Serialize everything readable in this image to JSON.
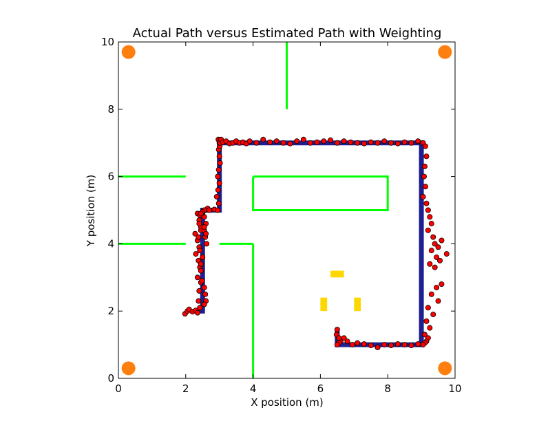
{
  "chart_data": {
    "type": "scatter",
    "title": "Actual Path versus Estimated Path with Weighting",
    "xlabel": "X position (m)",
    "ylabel": "Y position (m)",
    "xlim": [
      0,
      10
    ],
    "ylim": [
      0,
      10
    ],
    "xticks": [
      0,
      2,
      4,
      6,
      8,
      10
    ],
    "yticks": [
      0,
      2,
      4,
      6,
      8,
      10
    ],
    "grid": false,
    "colors": {
      "walls": "#00ff00",
      "anchors": "#ff7f0e",
      "obstacles": "#ffd700",
      "actual_path": "#1f1f8f",
      "estimated_points": "#ff0000"
    },
    "walls": [
      {
        "x": [
          5,
          5
        ],
        "y": [
          10,
          8
        ]
      },
      {
        "x": [
          0,
          2
        ],
        "y": [
          6,
          6
        ]
      },
      {
        "x": [
          0,
          2
        ],
        "y": [
          4,
          4
        ]
      },
      {
        "x": [
          3,
          4
        ],
        "y": [
          4,
          4
        ]
      },
      {
        "x": [
          4,
          4
        ],
        "y": [
          4,
          0
        ]
      },
      {
        "x": [
          4,
          8,
          8,
          4,
          4
        ],
        "y": [
          6,
          6,
          5,
          5,
          6
        ]
      }
    ],
    "anchors": [
      {
        "x": 0.3,
        "y": 9.7
      },
      {
        "x": 9.7,
        "y": 9.7
      },
      {
        "x": 0.3,
        "y": 0.3
      },
      {
        "x": 9.7,
        "y": 0.3
      }
    ],
    "obstacles": [
      {
        "x": 6.3,
        "y": 3.0,
        "w": 0.4,
        "h": 0.2
      },
      {
        "x": 6.0,
        "y": 2.0,
        "w": 0.2,
        "h": 0.4
      },
      {
        "x": 7.0,
        "y": 2.0,
        "w": 0.2,
        "h": 0.4
      }
    ],
    "actual_path": {
      "x": [
        2.3,
        2.5,
        2.5,
        3.0,
        3.0,
        9.0,
        9.0,
        6.5,
        6.5
      ],
      "y": [
        2.0,
        2.0,
        5.0,
        5.0,
        7.0,
        7.0,
        1.0,
        1.0,
        1.5
      ]
    },
    "estimated_points": {
      "x": [
        1.98,
        2.05,
        2.1,
        2.2,
        2.3,
        2.35,
        2.42,
        2.38,
        2.4,
        2.45,
        2.35,
        2.42,
        2.38,
        2.3,
        2.45,
        2.4,
        2.35,
        2.28,
        2.45,
        2.4,
        2.35,
        2.42,
        2.5,
        2.4,
        2.45,
        2.38,
        2.42,
        2.5,
        2.45,
        2.48,
        2.55,
        2.58,
        2.6,
        2.55,
        2.62,
        2.58,
        2.55,
        2.6,
        2.55,
        2.5,
        2.58,
        2.65,
        2.55,
        2.5,
        2.45,
        2.55,
        2.6,
        2.7,
        2.85,
        2.95,
        2.98,
        2.92,
        2.96,
        3.0,
        2.95,
        2.98,
        3.02,
        3.0,
        2.98,
        3.01,
        3.0,
        2.97,
        3.0,
        3.02,
        3.05,
        3.1,
        3.2,
        3.3,
        3.4,
        3.5,
        3.6,
        3.7,
        3.8,
        3.9,
        4.1,
        4.3,
        4.5,
        4.7,
        4.9,
        5.1,
        5.3,
        5.5,
        5.7,
        5.9,
        6.1,
        6.3,
        6.5,
        6.7,
        6.9,
        7.1,
        7.3,
        7.5,
        7.7,
        7.9,
        8.1,
        8.3,
        8.5,
        8.7,
        8.9,
        9.05,
        9.12,
        9.15,
        9.1,
        9.08,
        9.12,
        9.05,
        9.15,
        9.2,
        9.25,
        9.3,
        9.2,
        9.35,
        9.4,
        9.3,
        9.45,
        9.25,
        9.6,
        9.5,
        9.75,
        9.4,
        9.55,
        9.6,
        9.45,
        9.3,
        9.5,
        9.2,
        9.35,
        9.15,
        9.25,
        9.1,
        9.2,
        9.15,
        9.1,
        9.05,
        8.9,
        8.7,
        8.5,
        8.3,
        8.1,
        7.9,
        7.7,
        7.5,
        7.3,
        7.1,
        6.95,
        6.8,
        6.7,
        6.6,
        6.55,
        6.5,
        6.48,
        6.5,
        6.55
      ],
      "y": [
        1.92,
        2.0,
        2.05,
        1.98,
        2.02,
        1.95,
        2.1,
        2.3,
        2.6,
        2.85,
        3.0,
        3.3,
        3.5,
        3.7,
        3.4,
        3.9,
        4.1,
        4.3,
        4.5,
        4.7,
        4.9,
        4.85,
        4.95,
        4.6,
        4.4,
        4.2,
        3.8,
        3.6,
        3.2,
        2.9,
        2.7,
        2.5,
        2.3,
        2.2,
        4.0,
        4.2,
        4.4,
        4.6,
        4.8,
        4.92,
        5.0,
        5.05,
        5.0,
        4.95,
        4.9,
        4.5,
        4.3,
        5.0,
        5.02,
        5.0,
        5.2,
        5.4,
        5.6,
        5.8,
        6.0,
        6.2,
        6.4,
        6.6,
        6.8,
        6.9,
        7.0,
        7.1,
        7.05,
        7.0,
        7.1,
        7.02,
        7.05,
        6.98,
        7.0,
        7.05,
        7.0,
        7.02,
        6.98,
        7.05,
        7.0,
        7.1,
        7.02,
        7.05,
        7.0,
        6.98,
        7.05,
        7.1,
        7.0,
        7.02,
        7.05,
        7.08,
        7.0,
        7.05,
        7.02,
        7.0,
        6.98,
        7.02,
        7.0,
        7.05,
        7.0,
        6.98,
        7.02,
        7.0,
        7.05,
        7.0,
        6.9,
        6.6,
        6.3,
        6.0,
        5.7,
        5.4,
        5.2,
        5.0,
        4.8,
        4.6,
        4.4,
        4.2,
        4.0,
        3.8,
        3.6,
        3.4,
        4.1,
        3.9,
        3.7,
        3.3,
        3.5,
        2.8,
        2.7,
        2.5,
        2.3,
        2.1,
        1.9,
        1.7,
        1.5,
        1.3,
        1.2,
        1.1,
        1.05,
        1.0,
        1.02,
        0.98,
        1.0,
        1.02,
        0.98,
        1.0,
        0.92,
        0.98,
        1.02,
        1.05,
        1.0,
        1.1,
        1.2,
        1.1,
        1.05,
        1.0,
        1.3,
        1.45,
        1.2
      ]
    }
  }
}
